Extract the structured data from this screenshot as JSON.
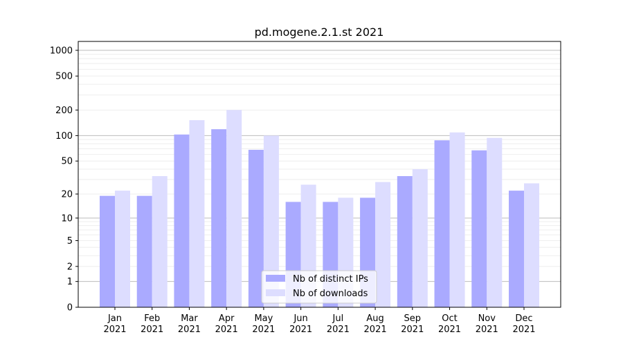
{
  "chart_data": {
    "type": "bar",
    "title": "pd.mogene.2.1.st 2021",
    "xlabel": "",
    "ylabel": "",
    "yscale": "log(1+y)",
    "ylim": [
      0,
      1270
    ],
    "yticks": [
      0,
      1,
      2,
      5,
      10,
      20,
      50,
      100,
      200,
      500,
      1000
    ],
    "grid": true,
    "legend_position": "bottom-center",
    "categories": [
      "Jan\n2021",
      "Feb\n2021",
      "Mar\n2021",
      "Apr\n2021",
      "May\n2021",
      "Jun\n2021",
      "Jul\n2021",
      "Aug\n2021",
      "Sep\n2021",
      "Oct\n2021",
      "Nov\n2021",
      "Dec\n2021"
    ],
    "series": [
      {
        "name": "Nb of distinct IPs",
        "color": "#aaaaff",
        "values": [
          19,
          19,
          103,
          119,
          68,
          16,
          16,
          18,
          33,
          88,
          67,
          22
        ]
      },
      {
        "name": "Nb of downloads",
        "color": "#ddddff",
        "values": [
          22,
          33,
          152,
          200,
          100,
          26,
          18,
          28,
          40,
          109,
          94,
          27
        ]
      }
    ]
  }
}
